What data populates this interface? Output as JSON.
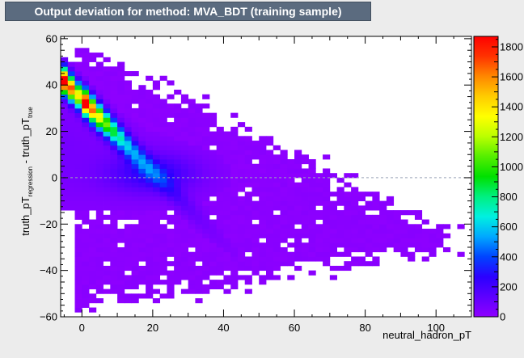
{
  "window": {
    "title": "Output deviation for method: MVA_BDT (training sample)"
  },
  "chart_data": {
    "type": "heatmap",
    "title": "Output deviation for method: MVA_BDT (training sample)",
    "xlabel": "neutral_hadron_pT",
    "ylabel": {
      "main": "truth_pT",
      "sub1": "regression",
      "mid": " - truth_pT",
      "sub2": "true"
    },
    "xlim": [
      -6,
      110
    ],
    "ylim": [
      -60,
      61
    ],
    "x_ticks": [
      0,
      20,
      40,
      60,
      80,
      100
    ],
    "x_tick_labels": [
      "0",
      "20",
      "40",
      "60",
      "80",
      "100"
    ],
    "y_ticks": [
      -60,
      -40,
      -20,
      0,
      20,
      40,
      60
    ],
    "y_tick_labels": [
      "−60",
      "−40",
      "−20",
      "0",
      "20",
      "40",
      "60"
    ],
    "colorbar": {
      "min": 0,
      "max": 1870,
      "ticks": [
        0,
        200,
        400,
        600,
        800,
        1000,
        1200,
        1400,
        1600,
        1800
      ],
      "tick_labels": [
        "0",
        "200",
        "400",
        "600",
        "800",
        "1000",
        "1200",
        "1400",
        "1600",
        "1800"
      ],
      "palette": [
        "#8f00ff",
        "#5d00ff",
        "#2b00ff",
        "#0044ff",
        "#00a8ff",
        "#00f0e0",
        "#00f080",
        "#00e000",
        "#55ee00",
        "#bbff00",
        "#ffff00",
        "#ffcc00",
        "#ff8800",
        "#ff3300",
        "#ff0000"
      ]
    },
    "reference_line": {
      "y": 0,
      "style": "dashed",
      "color": "#9aa5b8"
    },
    "grid": false,
    "bin_size": {
      "x": 2,
      "y": 2
    },
    "peak": {
      "x": 2,
      "y": 26,
      "value": 1850
    },
    "cells_note": "dense band from (0,30) falling to (22,-2); sparse halo extends to x=105 and y in [-58,58]"
  }
}
